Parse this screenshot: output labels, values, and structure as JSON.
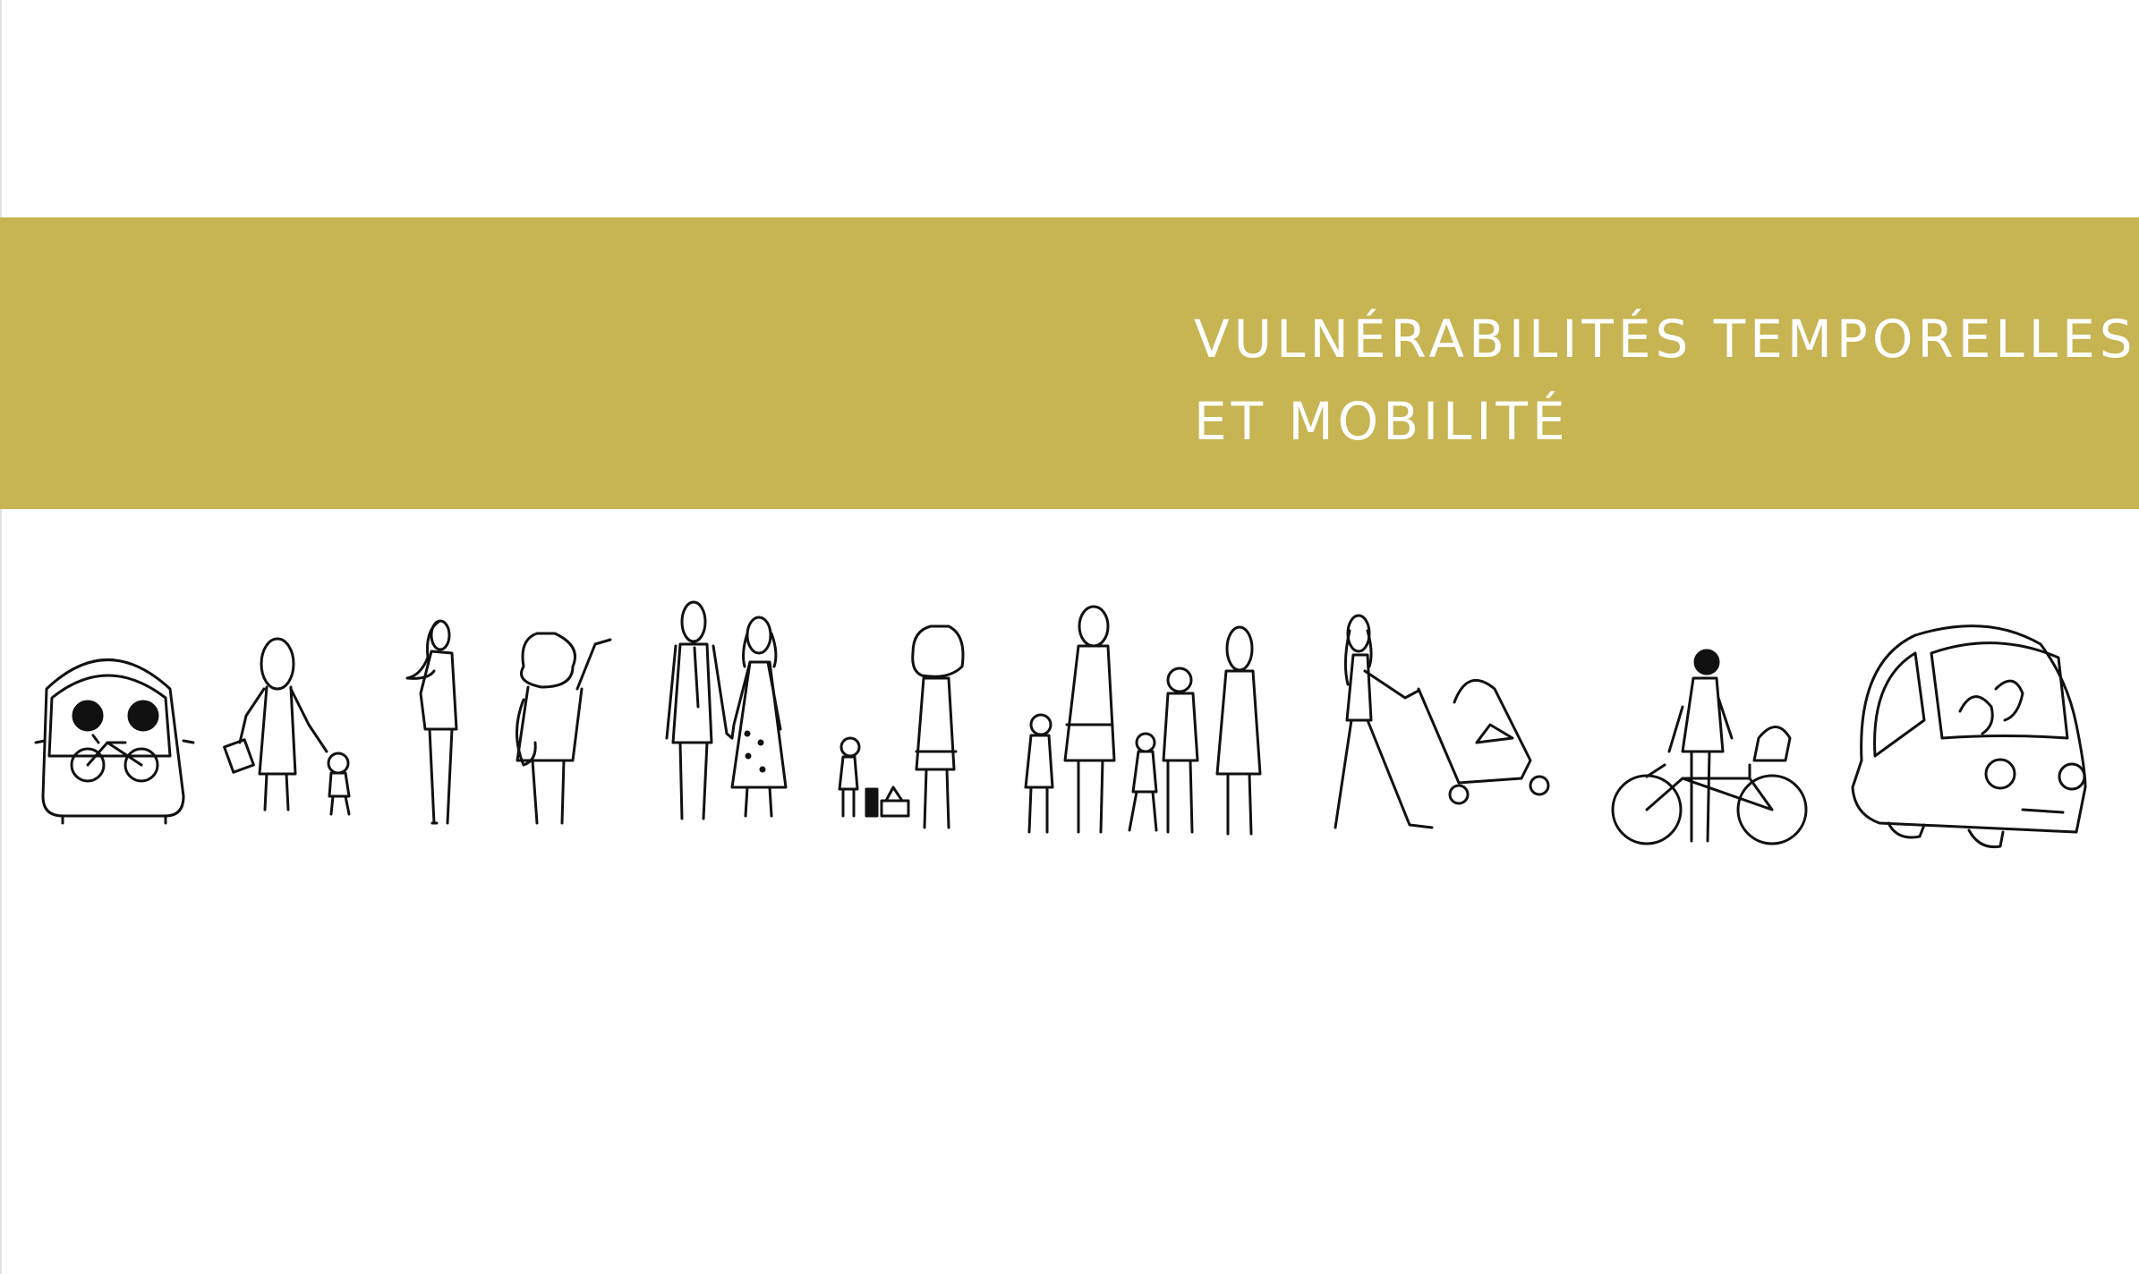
{
  "banner": {
    "title_line_1": "VULNÉRABILITÉS TEMPORELLES",
    "title_line_2": "ET MOBILITÉ",
    "color": "#c7b453",
    "text_color": "#ffffff"
  },
  "illustration": {
    "ink_color": "#111111",
    "figures": [
      "bus-with-bicycle-icon",
      "woman-holding-child-hand-icon",
      "woman-standing-icon",
      "person-waving-icon",
      "couple-holding-hands-icon",
      "woman-with-child-and-bags-icon",
      "family-group-icon",
      "woman-pushing-stroller-icon",
      "man-with-bicycle-child-seat-icon",
      "car-with-passengers-icon"
    ]
  }
}
